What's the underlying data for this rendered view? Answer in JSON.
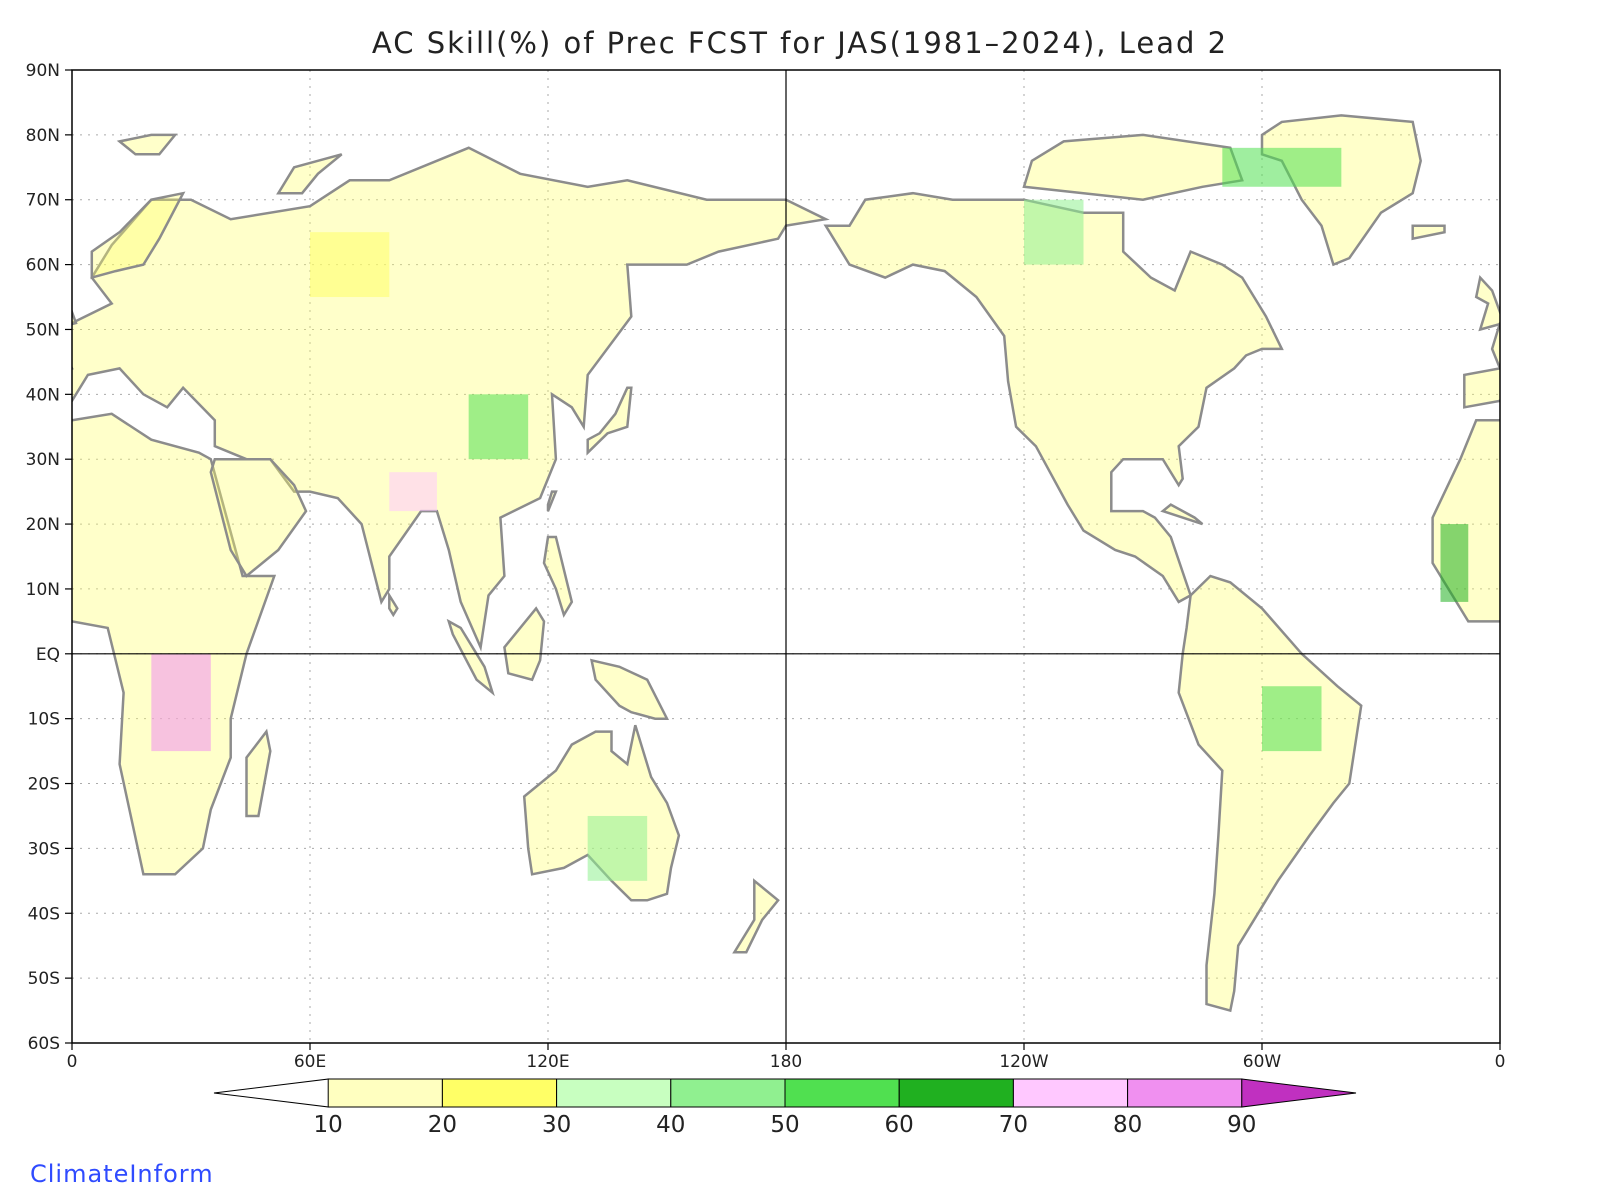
{
  "title": "AC Skill(%) of Prec FCST for JAS(1981–2024), Lead 2",
  "credit": "ClimateInform",
  "map": {
    "lat_labels": [
      "90N",
      "80N",
      "70N",
      "60N",
      "50N",
      "40N",
      "30N",
      "20N",
      "10N",
      "EQ",
      "10S",
      "20S",
      "30S",
      "40S",
      "50S",
      "60S"
    ],
    "lon_labels": [
      "0",
      "60E",
      "120E",
      "180",
      "120W",
      "60W",
      "0"
    ],
    "projection": "cylindrical equidistant, 0 to 360 longitude, 60S to 90N",
    "gridlines": "dotted",
    "reference_lines": [
      "Equator",
      "180"
    ]
  },
  "colorbar": {
    "ticks": [
      "10",
      "20",
      "30",
      "40",
      "50",
      "60",
      "70",
      "80",
      "90"
    ],
    "colors": [
      "#ffffff",
      "#ffffc0",
      "#ffff66",
      "#c8ffc0",
      "#90f090",
      "#50e050",
      "#20b020",
      "#ffc8ff",
      "#f090f0",
      "#c030c0"
    ]
  }
}
